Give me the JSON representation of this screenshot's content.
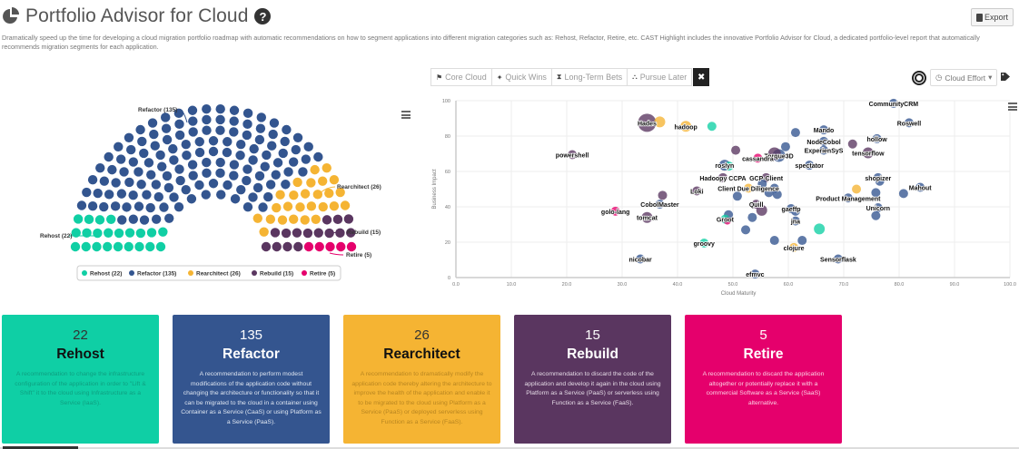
{
  "header": {
    "title": "Portfolio Advisor for Cloud",
    "help_glyph": "?",
    "export_label": "Export",
    "description": "Dramatically speed up the time for developing a cloud migration portfolio roadmap with automatic recommendations on how to segment applications into different migration categories such as: Rehost, Refactor, Retire, etc. CAST Highlight includes the innovative Portfolio Advisor for Cloud, a dedicated portfolio-level report that automatically recommends migration segments for each application."
  },
  "filters": [
    {
      "label": "Core Cloud",
      "icon": "flag-icon",
      "glyph": "⚑"
    },
    {
      "label": "Quick Wins",
      "icon": "magic-wand-icon",
      "glyph": "✦"
    },
    {
      "label": "Long-Term Bets",
      "icon": "hourglass-icon",
      "glyph": "⧗"
    },
    {
      "label": "Pursue Later",
      "icon": "binoculars-icon",
      "glyph": "⛬"
    }
  ],
  "filter_close_glyph": "✖",
  "effort_dropdown": {
    "label": "Cloud Effort",
    "caret": "▾",
    "icon_glyph": "◷"
  },
  "colors": {
    "rehost": "#10cfa4",
    "refactor": "#33558f",
    "rearchitect": "#f5b433",
    "rebuild": "#5a3660",
    "retire": "#e5006c"
  },
  "parliament": {
    "segments": [
      {
        "key": "rehost",
        "name": "Rehost",
        "count": 22,
        "label": "Rehost (22)"
      },
      {
        "key": "refactor",
        "name": "Refactor",
        "count": 135,
        "label": "Refactor (135)"
      },
      {
        "key": "rearchitect",
        "name": "Rearchitect",
        "count": 26,
        "label": "Rearchitect (26)"
      },
      {
        "key": "rebuild",
        "name": "Rebuild",
        "count": 15,
        "label": "Rebuild (15)"
      },
      {
        "key": "retire",
        "name": "Retire",
        "count": 5,
        "label": "Retire (5)"
      }
    ]
  },
  "chart_data": {
    "type": "scatter",
    "title": "",
    "xlabel": "Cloud Maturity",
    "ylabel": "Business Impact",
    "xlim": [
      0,
      100
    ],
    "ylim": [
      0,
      100
    ],
    "xticks": [
      "0.0",
      "10.0",
      "20.0",
      "30.0",
      "40.0",
      "50.0",
      "60.0",
      "70.0",
      "80.0",
      "90.0",
      "100.0"
    ],
    "yticks": [
      "0",
      "20",
      "40",
      "60",
      "80",
      "100"
    ],
    "grid": true,
    "points": [
      {
        "x": 34.5,
        "y": 87.5,
        "cat": "rebuild",
        "size": 10,
        "label": "Hades"
      },
      {
        "x": 36.8,
        "y": 88,
        "cat": "rearchitect",
        "size": 6,
        "label": ""
      },
      {
        "x": 41.5,
        "y": 85.5,
        "cat": "rearchitect",
        "size": 6,
        "label": "hadoop"
      },
      {
        "x": 46.2,
        "y": 85.5,
        "cat": "rehost",
        "size": 5,
        "label": ""
      },
      {
        "x": 21,
        "y": 69.5,
        "cat": "rebuild",
        "size": 5,
        "label": "powershell"
      },
      {
        "x": 79,
        "y": 98.5,
        "cat": "refactor",
        "size": 5,
        "label": "CommunityCRM"
      },
      {
        "x": 81.8,
        "y": 87.5,
        "cat": "refactor",
        "size": 5,
        "label": "Roswell"
      },
      {
        "x": 61.3,
        "y": 82,
        "cat": "refactor",
        "size": 5,
        "label": ""
      },
      {
        "x": 66.4,
        "y": 83.5,
        "cat": "refactor",
        "size": 5,
        "label": "Mando"
      },
      {
        "x": 66.4,
        "y": 77,
        "cat": "refactor",
        "size": 5,
        "label": "NodeCobol"
      },
      {
        "x": 76,
        "y": 78.5,
        "cat": "refactor",
        "size": 5,
        "label": "hollow"
      },
      {
        "x": 71.6,
        "y": 75.5,
        "cat": "rebuild",
        "size": 5,
        "label": ""
      },
      {
        "x": 74.4,
        "y": 70.5,
        "cat": "rebuild",
        "size": 6,
        "label": "tensorflow"
      },
      {
        "x": 66.4,
        "y": 72,
        "cat": "refactor",
        "size": 5,
        "label": "ExperienSyS"
      },
      {
        "x": 58.3,
        "y": 69,
        "cat": "refactor",
        "size": 7,
        "label": "Torque3D"
      },
      {
        "x": 57.5,
        "y": 70,
        "cat": "rebuild",
        "size": 7,
        "label": ""
      },
      {
        "x": 59.5,
        "y": 74,
        "cat": "refactor",
        "size": 5,
        "label": ""
      },
      {
        "x": 54.5,
        "y": 67.5,
        "cat": "retire",
        "size": 5,
        "label": "cassandra"
      },
      {
        "x": 50.5,
        "y": 72,
        "cat": "rebuild",
        "size": 5,
        "label": ""
      },
      {
        "x": 63.8,
        "y": 63.5,
        "cat": "refactor",
        "size": 5,
        "label": "spectator"
      },
      {
        "x": 48.5,
        "y": 63.5,
        "cat": "refactor",
        "size": 6,
        "label": "roslyn"
      },
      {
        "x": 49.3,
        "y": 63,
        "cat": "rehost",
        "size": 5,
        "label": ""
      },
      {
        "x": 48.2,
        "y": 56.5,
        "cat": "rebuild",
        "size": 5,
        "label": "Hadoopy CCPA"
      },
      {
        "x": 56,
        "y": 56.5,
        "cat": "rebuild",
        "size": 5,
        "label": "GCP-Client"
      },
      {
        "x": 55.3,
        "y": 53,
        "cat": "refactor",
        "size": 5,
        "label": ""
      },
      {
        "x": 57.5,
        "y": 50.5,
        "cat": "refactor",
        "size": 5,
        "label": ""
      },
      {
        "x": 52.8,
        "y": 50.5,
        "cat": "rearchitect",
        "size": 5,
        "label": "Client Due Diligence"
      },
      {
        "x": 56.5,
        "y": 48,
        "cat": "refactor",
        "size": 5,
        "label": ""
      },
      {
        "x": 43.5,
        "y": 49,
        "cat": "rebuild",
        "size": 5,
        "label": "Loki"
      },
      {
        "x": 37.3,
        "y": 46.5,
        "cat": "rebuild",
        "size": 5,
        "label": ""
      },
      {
        "x": 50.8,
        "y": 46,
        "cat": "refactor",
        "size": 5,
        "label": ""
      },
      {
        "x": 58,
        "y": 47,
        "cat": "refactor",
        "size": 5,
        "label": ""
      },
      {
        "x": 36.8,
        "y": 41.5,
        "cat": "refactor",
        "size": 5,
        "label": "CobolMaster"
      },
      {
        "x": 54.2,
        "y": 41.5,
        "cat": "rebuild",
        "size": 5,
        "label": "Quill"
      },
      {
        "x": 55.2,
        "y": 38,
        "cat": "rebuild",
        "size": 6,
        "label": ""
      },
      {
        "x": 60.5,
        "y": 39,
        "cat": "refactor",
        "size": 5,
        "label": "gaeffp"
      },
      {
        "x": 61.3,
        "y": 37.5,
        "cat": "refactor",
        "size": 5,
        "label": ""
      },
      {
        "x": 61.3,
        "y": 32,
        "cat": "refactor",
        "size": 5,
        "label": "jna"
      },
      {
        "x": 65.6,
        "y": 27.5,
        "cat": "rehost",
        "size": 6,
        "label": ""
      },
      {
        "x": 53.5,
        "y": 34,
        "cat": "refactor",
        "size": 5,
        "label": ""
      },
      {
        "x": 49.2,
        "y": 35.5,
        "cat": "refactor",
        "size": 5,
        "label": ""
      },
      {
        "x": 48.6,
        "y": 33,
        "cat": "rehost",
        "size": 5,
        "label": "Groot"
      },
      {
        "x": 49,
        "y": 32,
        "cat": "retire",
        "size": 4,
        "label": ""
      },
      {
        "x": 52.3,
        "y": 27,
        "cat": "refactor",
        "size": 5,
        "label": ""
      },
      {
        "x": 28.8,
        "y": 37.5,
        "cat": "retire",
        "size": 5,
        "label": "golo-lang"
      },
      {
        "x": 34.5,
        "y": 34,
        "cat": "rebuild",
        "size": 6,
        "label": "tomcat"
      },
      {
        "x": 44.8,
        "y": 19.5,
        "cat": "rehost",
        "size": 5,
        "label": "groovy"
      },
      {
        "x": 57.5,
        "y": 21,
        "cat": "refactor",
        "size": 5,
        "label": ""
      },
      {
        "x": 62.5,
        "y": 21,
        "cat": "refactor",
        "size": 5,
        "label": ""
      },
      {
        "x": 61,
        "y": 17,
        "cat": "rearchitect",
        "size": 5,
        "label": "clojure"
      },
      {
        "x": 69,
        "y": 10.5,
        "cat": "refactor",
        "size": 5,
        "label": "Sensorflask"
      },
      {
        "x": 33.3,
        "y": 10.5,
        "cat": "refactor",
        "size": 5,
        "label": "nicobar"
      },
      {
        "x": 54,
        "y": 2,
        "cat": "refactor",
        "size": 5,
        "label": "efmvc"
      },
      {
        "x": 76.2,
        "y": 56.5,
        "cat": "refactor",
        "size": 5,
        "label": "shopizer"
      },
      {
        "x": 76.5,
        "y": 54.5,
        "cat": "refactor",
        "size": 5,
        "label": ""
      },
      {
        "x": 72.3,
        "y": 50,
        "cat": "rearchitect",
        "size": 5,
        "label": ""
      },
      {
        "x": 83.8,
        "y": 51,
        "cat": "refactor",
        "size": 5,
        "label": "Mahout"
      },
      {
        "x": 80.8,
        "y": 47.5,
        "cat": "refactor",
        "size": 5,
        "label": ""
      },
      {
        "x": 75.8,
        "y": 48,
        "cat": "refactor",
        "size": 5,
        "label": ""
      },
      {
        "x": 70.8,
        "y": 45,
        "cat": "refactor",
        "size": 5,
        "label": "Product Management"
      },
      {
        "x": 76.2,
        "y": 39.5,
        "cat": "refactor",
        "size": 5,
        "label": "Unicorn"
      },
      {
        "x": 75.8,
        "y": 35,
        "cat": "refactor",
        "size": 5,
        "label": ""
      }
    ]
  },
  "cards": [
    {
      "key": "rehost",
      "count": "22",
      "name": "Rehost",
      "desc": "A recommendation to change the infrastructure configuration of the application in order to \"Lift & Shift\" it to the cloud using Infrastructure as a Service (IaaS).",
      "bg": "#0fcfa5",
      "title_color": "#111",
      "count_color": "#333",
      "desc_color": "#0e9f80"
    },
    {
      "key": "refactor",
      "count": "135",
      "name": "Refactor",
      "desc": "A recommendation to perform modest modifications of the application code without changing the architecture or functionality so that it can be migrated to the cloud in a container using Container as a Service (CaaS) or using Platform as a Service (PaaS).",
      "bg": "#34558f",
      "title_color": "#fff",
      "count_color": "#fff",
      "desc_color": "#dfe6f1"
    },
    {
      "key": "rearchitect",
      "count": "26",
      "name": "Rearchitect",
      "desc": "A recommendation to dramatically modify the application code thereby altering the architecture to improve the health of the application and enable it to be migrated to the cloud using Platform as a Service (PaaS) or deployed serverless using Function as a Service (FaaS).",
      "bg": "#f5b433",
      "title_color": "#111",
      "count_color": "#333",
      "desc_color": "#b98620"
    },
    {
      "key": "rebuild",
      "count": "15",
      "name": "Rebuild",
      "desc": "A recommendation to discard the code of the application and develop it again in the cloud using Platform as a Service (PaaS) or serverless using Function as a Service (FaaS).",
      "bg": "#5a3660",
      "title_color": "#fff",
      "count_color": "#fff",
      "desc_color": "#e5dbe6"
    },
    {
      "key": "retire",
      "count": "5",
      "name": "Retire",
      "desc": "A recommendation to discard the application altogether or potentially replace it with a commercial Software as a Service (SaaS) alternative.",
      "bg": "#e5006c",
      "title_color": "#fff",
      "count_color": "#fff",
      "desc_color": "#fbd2e4"
    }
  ]
}
